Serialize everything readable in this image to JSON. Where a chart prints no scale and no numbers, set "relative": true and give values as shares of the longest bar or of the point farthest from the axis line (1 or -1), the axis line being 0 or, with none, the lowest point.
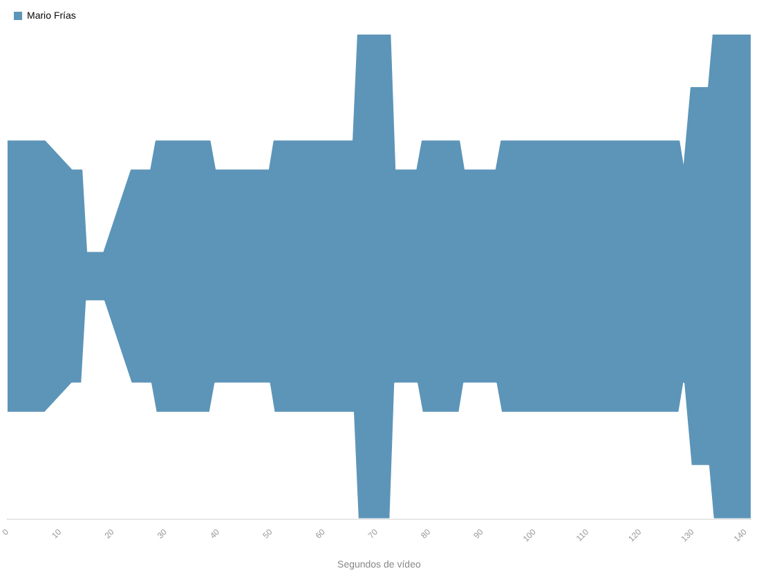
{
  "chart_data": {
    "type": "area",
    "relative": true,
    "stacked": true,
    "xlabel": "Segundos de vídeo",
    "x": [
      0,
      7.1,
      12.2,
      14.1,
      15.0,
      18.3,
      23.5,
      27.2,
      28.2,
      38.4,
      39.4,
      49.7,
      50.6,
      65.6,
      66.5,
      72.6,
      73.5,
      77.7,
      78.7,
      85.7,
      86.6,
      92.7,
      93.7,
      127.4,
      128.3,
      129.7,
      133.0,
      133.9,
      141
    ],
    "series": [
      {
        "color": "#ffffff",
        "values": [
          0.22,
          0.22,
          0.28,
          0.28,
          0.45,
          0.45,
          0.28,
          0.28,
          0.22,
          0.22,
          0.28,
          0.28,
          0.22,
          0.22,
          0,
          0,
          0.28,
          0.28,
          0.22,
          0.22,
          0.28,
          0.28,
          0.22,
          0.22,
          0.28,
          0.11,
          0.11,
          0,
          0
        ]
      },
      {
        "name": "Mario Frías",
        "color": "#5d95b8",
        "values": [
          0.56,
          0.56,
          0.44,
          0.44,
          0.1,
          0.1,
          0.44,
          0.44,
          0.56,
          0.56,
          0.44,
          0.44,
          0.56,
          0.56,
          1,
          1,
          0.44,
          0.44,
          0.56,
          0.56,
          0.44,
          0.44,
          0.56,
          0.56,
          0.44,
          0.78,
          0.78,
          1,
          1
        ]
      }
    ],
    "xlim": [
      0,
      141
    ],
    "xticks": [
      0,
      10,
      20,
      30,
      40,
      50,
      60,
      70,
      80,
      90,
      100,
      110,
      120,
      130,
      140
    ],
    "legend": "top left",
    "grid": false
  }
}
